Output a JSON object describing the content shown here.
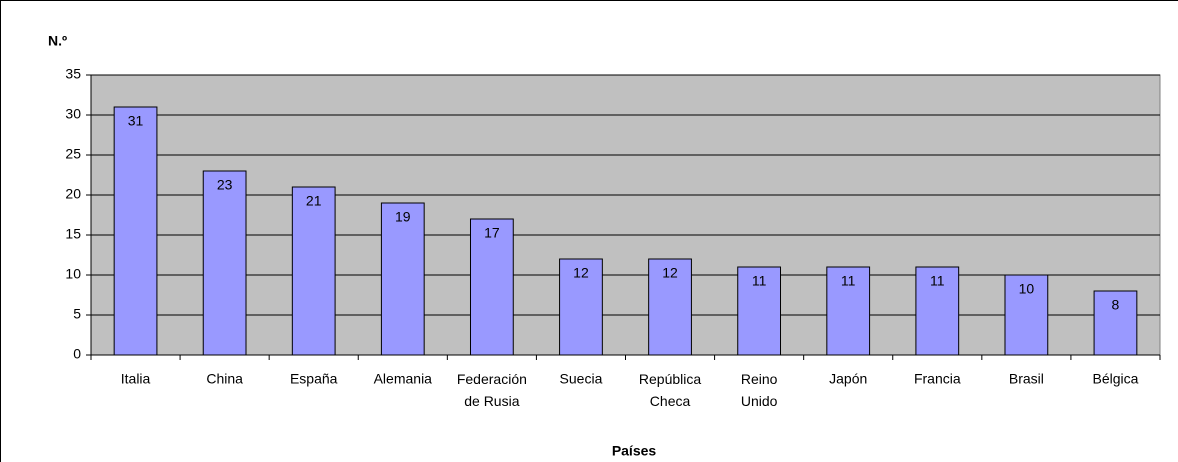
{
  "chart_data": {
    "type": "bar",
    "y_label": "N.º",
    "x_label": "Países",
    "categories": [
      "Italia",
      "China",
      "España",
      "Alemania",
      "Federación de Rusia",
      "Suecia",
      "República Checa",
      "Reino Unido",
      "Japón",
      "Francia",
      "Brasil",
      "Bélgica"
    ],
    "values": [
      31,
      23,
      21,
      19,
      17,
      12,
      12,
      11,
      11,
      11,
      10,
      8
    ],
    "color": "#9999ff",
    "plot_background": "#c0c0c0",
    "ylim": [
      0,
      35
    ],
    "yticks": [
      0,
      5,
      10,
      15,
      20,
      25,
      30,
      35
    ],
    "grid": true
  }
}
